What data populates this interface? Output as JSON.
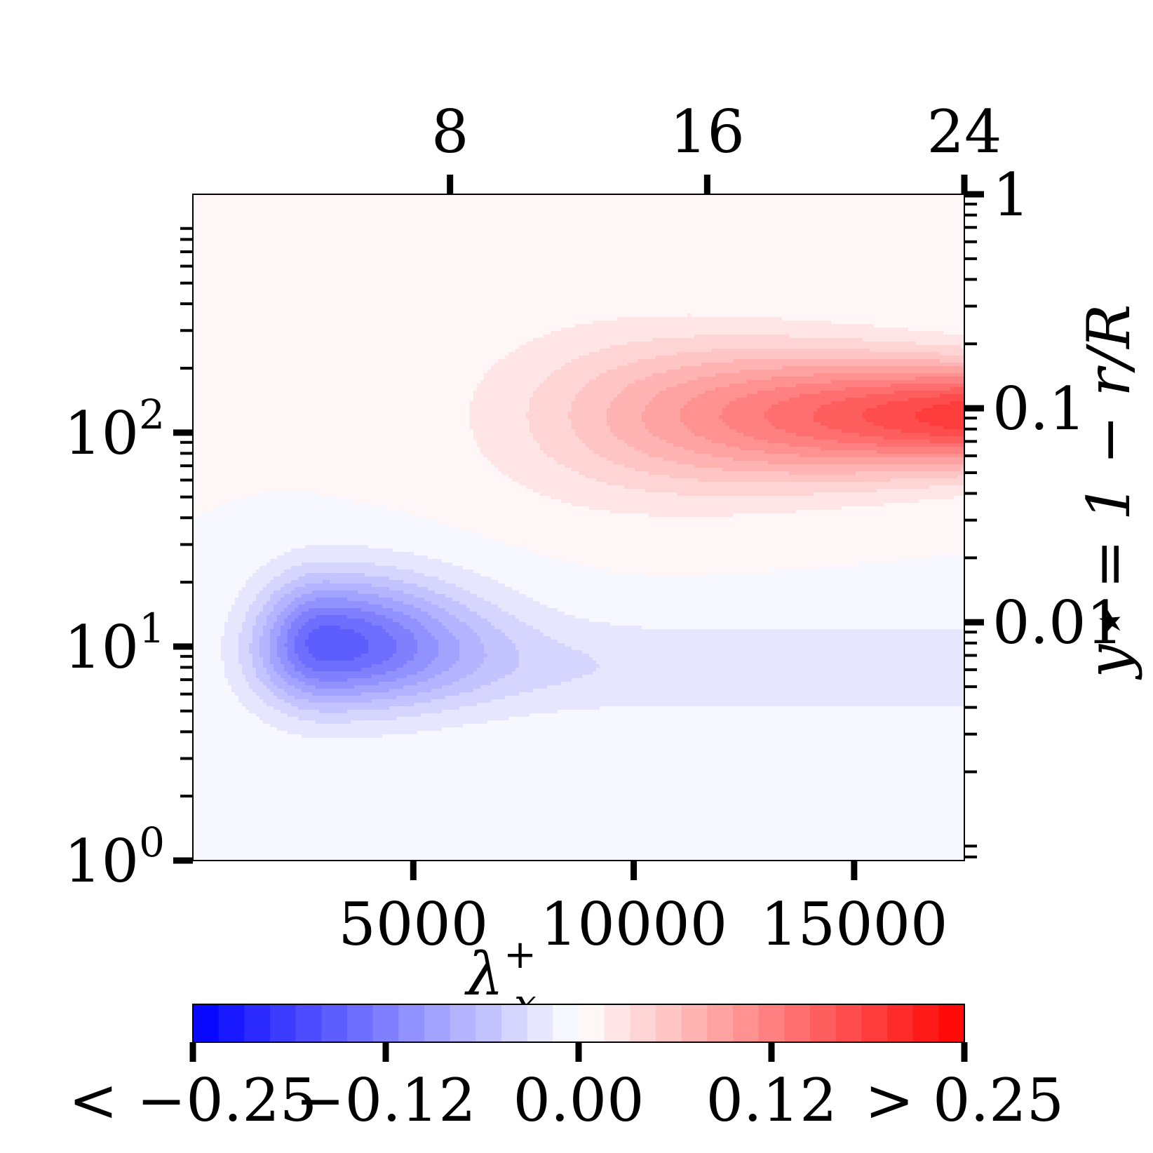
{
  "chart_data": {
    "type": "heatmap",
    "x_axis": {
      "label_main": "λ",
      "label_sup": "+",
      "label_sub": "x",
      "range": [
        0,
        17500
      ],
      "ticks": [
        {
          "value": 5000,
          "label": "5000"
        },
        {
          "value": 10000,
          "label": "10000"
        },
        {
          "value": 15000,
          "label": "15000"
        }
      ]
    },
    "x_top_axis": {
      "range": [
        0,
        24
      ],
      "ticks": [
        {
          "value": 8,
          "label": "8"
        },
        {
          "value": 16,
          "label": "16"
        },
        {
          "value": 24,
          "label": "24"
        }
      ]
    },
    "y_left_axis": {
      "scale": "log",
      "range": [
        1,
        1300
      ],
      "ticks": [
        {
          "value": 1,
          "base": "10",
          "exp": "0"
        },
        {
          "value": 10,
          "base": "10",
          "exp": "1"
        },
        {
          "value": 100,
          "base": "10",
          "exp": "2"
        }
      ]
    },
    "y_right_axis": {
      "scale": "log",
      "range": [
        0.00077,
        1
      ],
      "label": "y⋆ = 1 − r/R",
      "ticks": [
        {
          "value": 0.01,
          "label": "0.01"
        },
        {
          "value": 0.1,
          "label": "0.1"
        },
        {
          "value": 1,
          "label": "1"
        }
      ]
    },
    "colorbar": {
      "range": [
        -0.25,
        0.25
      ],
      "levels": 30,
      "low_color": "#0000ff",
      "mid_color": "#ffffff",
      "high_color": "#ff0000",
      "ticks": [
        {
          "value": -0.25,
          "label": "< −0.25"
        },
        {
          "value": -0.125,
          "label": "−0.12"
        },
        {
          "value": 0,
          "label": "0.00"
        },
        {
          "value": 0.125,
          "label": "0.12"
        },
        {
          "value": 0.25,
          "label": "> 0.25"
        }
      ]
    },
    "features": [
      {
        "kind": "positive-lobe",
        "peak_x": 17500,
        "peak_y": 120,
        "peak_value": 0.2
      },
      {
        "kind": "negative-lobe",
        "peak_x": 3000,
        "peak_y": 11,
        "peak_value": -0.14
      },
      {
        "kind": "weak-negative-band",
        "y": 8,
        "value": -0.03
      }
    ],
    "grid": false,
    "legend": "colorbar-bottom"
  }
}
